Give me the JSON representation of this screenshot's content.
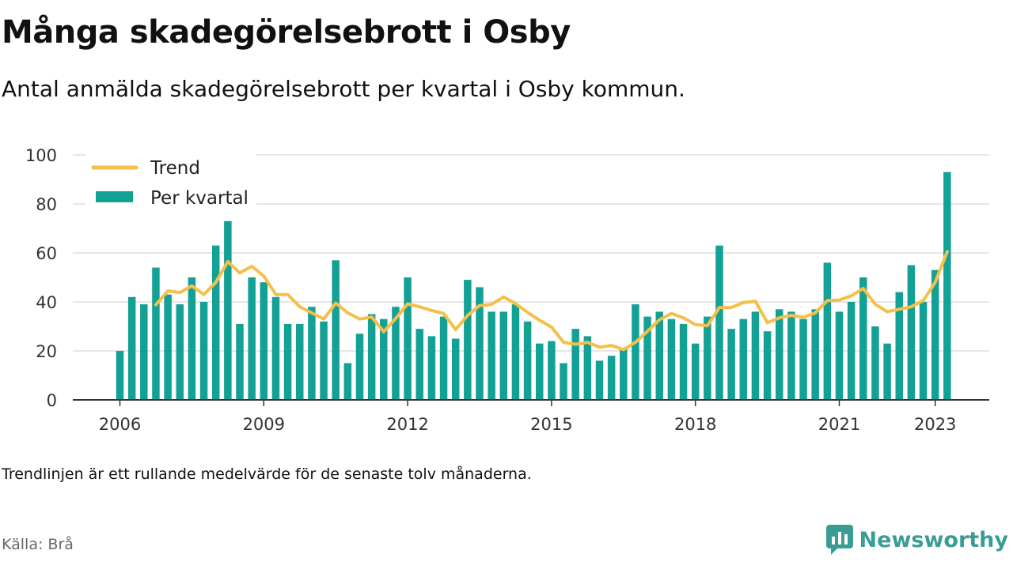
{
  "title": "Många skadegörelsebrott i Osby",
  "subtitle": "Antal anmälda skadegörelsebrott per kvartal i Osby kommun.",
  "note": "Trendlinjen är ett rullande medelvärde för de senaste tolv månaderna.",
  "source": "Källa: Brå",
  "brand": {
    "name": "Newsworthy",
    "icon": "newsworthy-logo-icon",
    "color": "#3a9d95"
  },
  "colors": {
    "bars": "#13a196",
    "trend": "#f5c04a",
    "grid": "#dddddd",
    "axis": "#333333"
  },
  "chart_data": {
    "type": "bar",
    "ylim": [
      0,
      100
    ],
    "yticks": [
      0,
      20,
      40,
      60,
      80,
      100
    ],
    "xtick_labels": [
      "2006",
      "2009",
      "2012",
      "2015",
      "2018",
      "2021",
      "2023"
    ],
    "xtick_years": [
      2006,
      2009,
      2012,
      2015,
      2018,
      2021,
      2023
    ],
    "start": "2006 Q1",
    "grid": true,
    "legend_position": "top-left",
    "series": [
      {
        "name": "Per kvartal",
        "kind": "bar",
        "values": [
          20,
          42,
          39,
          54,
          43,
          39,
          50,
          40,
          63,
          73,
          31,
          50,
          48,
          42,
          31,
          31,
          38,
          32,
          57,
          15,
          27,
          35,
          33,
          38,
          50,
          29,
          26,
          34,
          25,
          49,
          46,
          36,
          36,
          39,
          32,
          23,
          24,
          15,
          29,
          26,
          16,
          18,
          21,
          39,
          34,
          36,
          33,
          31,
          23,
          34,
          63,
          29,
          33,
          36,
          28,
          37,
          36,
          33,
          37,
          56,
          36,
          40,
          50,
          30,
          23,
          44,
          55,
          40,
          53,
          93
        ]
      },
      {
        "name": "Trend",
        "kind": "line",
        "values": [
          null,
          null,
          null,
          38.8,
          44.5,
          43.8,
          46.5,
          43.0,
          48.0,
          56.5,
          51.8,
          54.5,
          50.5,
          43.0,
          43.0,
          38.0,
          35.5,
          33.0,
          39.5,
          35.5,
          33.0,
          33.8,
          27.8,
          33.2,
          39.2,
          38.0,
          36.5,
          35.3,
          28.7,
          34.5,
          38.5,
          39.0,
          42.0,
          39.3,
          35.7,
          32.5,
          29.7,
          23.5,
          22.7,
          23.5,
          21.5,
          22.2,
          20.5,
          23.5,
          28.0,
          32.7,
          35.3,
          33.5,
          30.7,
          30.3,
          37.7,
          37.7,
          39.7,
          40.3,
          31.5,
          33.5,
          34.5,
          33.7,
          35.5,
          40.5,
          40.7,
          42.5,
          45.5,
          39.0,
          36.0,
          37.0,
          38.0,
          40.5,
          48.0,
          60.5
        ]
      }
    ]
  }
}
